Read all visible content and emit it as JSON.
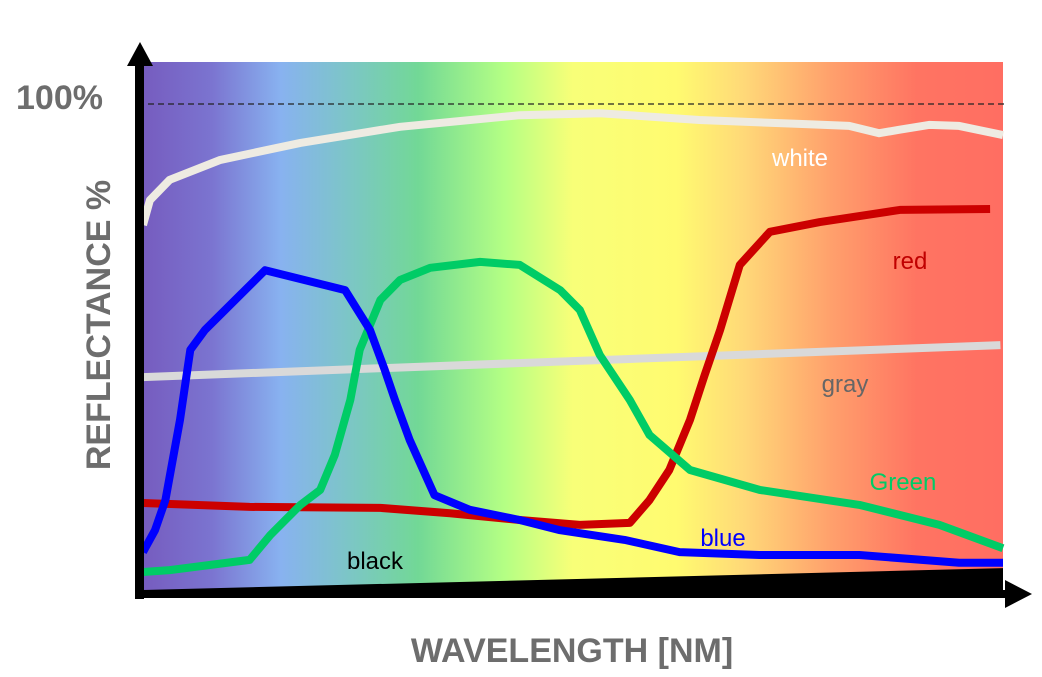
{
  "chart_data": {
    "type": "line",
    "title": "",
    "xlabel": "WAVELENGTH [NM]",
    "ylabel": "REFLECTANCE %",
    "y_tick_labels": [
      "100%"
    ],
    "reference_line": {
      "y": 100,
      "style": "dashed"
    },
    "xlim": [
      0,
      100
    ],
    "ylim": [
      0,
      100
    ],
    "grid": false,
    "background": "visible spectrum gradient (violet → blue → green → yellow → orange → red)",
    "series": [
      {
        "name": "white",
        "color": "#eeebe2",
        "label_color": "#ffffff",
        "points": [
          [
            0,
            75.1
          ],
          [
            0.8,
            80.2
          ],
          [
            3.1,
            84.4
          ],
          [
            9.0,
            88.5
          ],
          [
            18.3,
            92.0
          ],
          [
            29.9,
            95.3
          ],
          [
            43.8,
            97.7
          ],
          [
            53.1,
            98.1
          ],
          [
            64.7,
            96.7
          ],
          [
            76.3,
            95.9
          ],
          [
            82.1,
            95.5
          ],
          [
            85.6,
            94.0
          ],
          [
            87.9,
            94.7
          ],
          [
            91.4,
            95.7
          ],
          [
            94.9,
            95.5
          ],
          [
            100,
            93.6
          ]
        ]
      },
      {
        "name": "red",
        "color": "#cc0000",
        "label_color": "#c00000",
        "points": [
          [
            0,
            17.9
          ],
          [
            12.4,
            17.1
          ],
          [
            27.6,
            16.9
          ],
          [
            35.7,
            15.8
          ],
          [
            43.8,
            14.4
          ],
          [
            50.8,
            13.4
          ],
          [
            56.6,
            13.8
          ],
          [
            58.9,
            18.5
          ],
          [
            61.2,
            24.7
          ],
          [
            63.6,
            35.0
          ],
          [
            65.3,
            44.2
          ],
          [
            67.1,
            53.5
          ],
          [
            69.4,
            66.9
          ],
          [
            72.9,
            73.7
          ],
          [
            78.7,
            75.7
          ],
          [
            88.0,
            78.2
          ],
          [
            98.5,
            78.4
          ]
        ]
      },
      {
        "name": "gray",
        "color": "#d9d9d9",
        "label_color": "#666666",
        "points": [
          [
            0,
            43.8
          ],
          [
            99.7,
            50.4
          ]
        ]
      },
      {
        "name": "Green",
        "color": "#00cc66",
        "label_color": "#00cc66",
        "points": [
          [
            0,
            3.7
          ],
          [
            3.1,
            4.1
          ],
          [
            12.4,
            6.2
          ],
          [
            14.8,
            11.3
          ],
          [
            18.3,
            17.5
          ],
          [
            20.6,
            20.6
          ],
          [
            22.3,
            27.8
          ],
          [
            24.1,
            39.1
          ],
          [
            25.2,
            49.4
          ],
          [
            27.6,
            59.7
          ],
          [
            29.9,
            63.8
          ],
          [
            33.4,
            66.3
          ],
          [
            39.2,
            67.5
          ],
          [
            43.8,
            66.9
          ],
          [
            48.5,
            61.7
          ],
          [
            50.8,
            57.6
          ],
          [
            53.1,
            48.4
          ],
          [
            56.6,
            39.1
          ],
          [
            58.9,
            31.9
          ],
          [
            63.6,
            24.7
          ],
          [
            71.7,
            20.6
          ],
          [
            83.3,
            17.5
          ],
          [
            92.6,
            13.4
          ],
          [
            100,
            8.6
          ]
        ]
      },
      {
        "name": "blue",
        "color": "#0000ff",
        "label_color": "#0000ff",
        "points": [
          [
            0,
            7.8
          ],
          [
            1.4,
            12.3
          ],
          [
            2.6,
            18.5
          ],
          [
            4.3,
            35.0
          ],
          [
            5.5,
            49.4
          ],
          [
            7.2,
            53.5
          ],
          [
            14.2,
            65.8
          ],
          [
            23.5,
            61.7
          ],
          [
            26.4,
            53.5
          ],
          [
            28.1,
            45.3
          ],
          [
            29.3,
            39.1
          ],
          [
            31.0,
            30.9
          ],
          [
            33.9,
            19.5
          ],
          [
            38.0,
            16.5
          ],
          [
            43.8,
            14.4
          ],
          [
            48.5,
            12.3
          ],
          [
            56.0,
            10.3
          ],
          [
            62.4,
            7.8
          ],
          [
            71.7,
            7.2
          ],
          [
            83.3,
            7.2
          ],
          [
            94.9,
            5.6
          ],
          [
            100,
            5.6
          ]
        ]
      },
      {
        "name": "black",
        "color": "#000000",
        "label_color": "#000000",
        "points": [
          [
            0,
            0
          ],
          [
            100,
            4.5
          ]
        ]
      }
    ]
  }
}
